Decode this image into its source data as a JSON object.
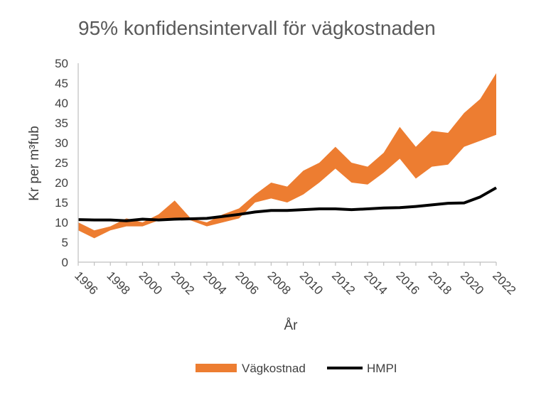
{
  "chart_data": {
    "type": "area",
    "title": "95% konfidensintervall för vägkostnaden",
    "xlabel": "År",
    "ylabel": "Kr per m³fub",
    "x": [
      1996,
      1997,
      1998,
      1999,
      2000,
      2001,
      2002,
      2003,
      2004,
      2005,
      2006,
      2007,
      2008,
      2009,
      2010,
      2011,
      2012,
      2013,
      2014,
      2015,
      2016,
      2017,
      2018,
      2019,
      2020,
      2021,
      2022
    ],
    "x_tick_labels": [
      "1996",
      "1998",
      "2000",
      "2002",
      "2004",
      "2006",
      "2008",
      "2010",
      "2012",
      "2014",
      "2016",
      "2018",
      "2020",
      "2022"
    ],
    "ylim": [
      0,
      50
    ],
    "y_ticks": [
      0,
      5,
      10,
      15,
      20,
      25,
      30,
      35,
      40,
      45,
      50
    ],
    "grid": false,
    "legend_position": "bottom",
    "series": [
      {
        "name": "Vägkostnad",
        "kind": "band",
        "color": "#ED7D31",
        "upper": [
          10,
          8,
          9,
          11,
          10,
          12,
          15.5,
          11,
          10,
          12,
          13.5,
          17,
          20,
          19,
          23,
          25,
          29,
          25,
          24,
          27.5,
          34,
          29,
          33,
          32.5,
          37.5,
          41,
          47.5
        ],
        "lower": [
          8,
          6,
          8,
          9,
          9,
          10.5,
          11,
          10.5,
          9,
          10,
          11,
          15,
          16,
          15,
          17,
          20,
          23.5,
          20,
          19.5,
          22.5,
          26,
          21,
          24,
          24.5,
          29,
          30.5,
          32
        ]
      },
      {
        "name": "HMPI",
        "kind": "line",
        "color": "#000000",
        "values": [
          10.7,
          10.6,
          10.6,
          10.4,
          10.8,
          10.6,
          10.8,
          10.9,
          11,
          11.5,
          12,
          12.6,
          13,
          13,
          13.2,
          13.4,
          13.4,
          13.2,
          13.4,
          13.6,
          13.7,
          14,
          14.4,
          14.8,
          14.9,
          16.4,
          18.7
        ]
      }
    ]
  }
}
